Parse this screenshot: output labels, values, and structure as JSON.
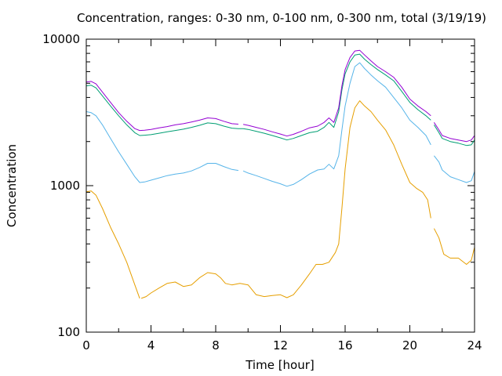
{
  "chart_data": {
    "type": "line",
    "title": "Concentration, ranges: 0-30 nm, 0-100 nm, 0-300 nm, total (3/19/19)",
    "xlabel": "Time [hour]",
    "ylabel": "Concentration",
    "xlim": [
      0,
      24
    ],
    "ylim": [
      100,
      10000
    ],
    "yscale": "log",
    "xticks": [
      0,
      4,
      8,
      12,
      16,
      20,
      24
    ],
    "xtick_labels": [
      "0",
      "4",
      "8",
      "12",
      "16",
      "20",
      "24"
    ],
    "yticks": [
      100,
      1000,
      10000
    ],
    "ytick_labels": [
      "100",
      "1000",
      "10000"
    ],
    "grid": false,
    "series": [
      {
        "color": "#e69f00",
        "segments": [
          [
            [
              0,
              910
            ],
            [
              0.3,
              920
            ],
            [
              0.6,
              860
            ],
            [
              1,
              700
            ],
            [
              1.5,
              520
            ],
            [
              2,
              400
            ],
            [
              2.5,
              300
            ],
            [
              3,
              210
            ],
            [
              3.3,
              170
            ]
          ],
          [
            [
              3.4,
              170
            ],
            [
              3.7,
              175
            ],
            [
              4,
              185
            ],
            [
              4.5,
              200
            ],
            [
              5,
              215
            ],
            [
              5.5,
              220
            ],
            [
              6,
              205
            ],
            [
              6.5,
              210
            ],
            [
              7,
              235
            ],
            [
              7.5,
              255
            ],
            [
              8,
              250
            ],
            [
              8.3,
              235
            ],
            [
              8.6,
              215
            ],
            [
              9,
              210
            ],
            [
              9.5,
              215
            ],
            [
              10,
              210
            ],
            [
              10.5,
              180
            ],
            [
              11,
              175
            ],
            [
              11.5,
              178
            ],
            [
              12,
              180
            ],
            [
              12.4,
              172
            ],
            [
              12.8,
              180
            ],
            [
              13.3,
              210
            ],
            [
              13.8,
              250
            ],
            [
              14.2,
              290
            ],
            [
              14.6,
              290
            ],
            [
              15,
              300
            ],
            [
              15.4,
              350
            ],
            [
              15.6,
              400
            ],
            [
              15.8,
              700
            ],
            [
              16,
              1300
            ],
            [
              16.3,
              2500
            ],
            [
              16.6,
              3400
            ],
            [
              16.9,
              3800
            ],
            [
              17.2,
              3500
            ],
            [
              17.6,
              3200
            ],
            [
              18,
              2800
            ],
            [
              18.5,
              2400
            ],
            [
              19,
              1900
            ],
            [
              19.5,
              1400
            ],
            [
              20,
              1050
            ],
            [
              20.4,
              960
            ],
            [
              20.8,
              900
            ],
            [
              21.1,
              800
            ],
            [
              21.3,
              600
            ]
          ],
          [
            [
              21.5,
              510
            ],
            [
              21.8,
              440
            ],
            [
              22.1,
              340
            ],
            [
              22.5,
              320
            ],
            [
              23,
              320
            ],
            [
              23.5,
              290
            ],
            [
              23.8,
              310
            ],
            [
              24,
              380
            ]
          ]
        ]
      },
      {
        "color": "#56b4e9",
        "segments": [
          [
            [
              0,
              3200
            ],
            [
              0.3,
              3150
            ],
            [
              0.6,
              3000
            ],
            [
              1,
              2600
            ],
            [
              1.5,
              2100
            ],
            [
              2,
              1700
            ],
            [
              2.5,
              1400
            ],
            [
              3,
              1150
            ],
            [
              3.3,
              1050
            ],
            [
              3.6,
              1060
            ],
            [
              4,
              1090
            ],
            [
              4.5,
              1130
            ],
            [
              5,
              1170
            ],
            [
              5.5,
              1200
            ],
            [
              6,
              1220
            ],
            [
              6.5,
              1260
            ],
            [
              7,
              1330
            ],
            [
              7.5,
              1420
            ],
            [
              8,
              1420
            ],
            [
              8.5,
              1350
            ],
            [
              9,
              1290
            ],
            [
              9.4,
              1270
            ]
          ],
          [
            [
              9.7,
              1260
            ],
            [
              10,
              1220
            ],
            [
              10.5,
              1170
            ],
            [
              11,
              1120
            ],
            [
              11.5,
              1070
            ],
            [
              12,
              1030
            ],
            [
              12.4,
              990
            ],
            [
              12.8,
              1020
            ],
            [
              13.3,
              1100
            ],
            [
              13.8,
              1200
            ],
            [
              14.3,
              1280
            ],
            [
              14.7,
              1300
            ],
            [
              15,
              1400
            ],
            [
              15.3,
              1300
            ],
            [
              15.6,
              1600
            ],
            [
              15.8,
              2400
            ],
            [
              16,
              3500
            ],
            [
              16.3,
              5000
            ],
            [
              16.6,
              6500
            ],
            [
              16.9,
              6900
            ],
            [
              17.2,
              6300
            ],
            [
              17.6,
              5700
            ],
            [
              18,
              5200
            ],
            [
              18.5,
              4700
            ],
            [
              19,
              4000
            ],
            [
              19.5,
              3400
            ],
            [
              20,
              2800
            ],
            [
              20.5,
              2500
            ],
            [
              21,
              2200
            ],
            [
              21.3,
              1900
            ]
          ],
          [
            [
              21.5,
              1600
            ],
            [
              21.8,
              1450
            ],
            [
              22,
              1280
            ],
            [
              22.5,
              1150
            ],
            [
              23,
              1100
            ],
            [
              23.5,
              1050
            ],
            [
              23.8,
              1080
            ],
            [
              24,
              1250
            ]
          ]
        ]
      },
      {
        "color": "#009e73",
        "segments": [
          [
            [
              0,
              4800
            ],
            [
              0.3,
              4850
            ],
            [
              0.6,
              4650
            ],
            [
              1,
              4100
            ],
            [
              1.5,
              3500
            ],
            [
              2,
              3000
            ],
            [
              2.5,
              2600
            ],
            [
              3,
              2300
            ],
            [
              3.3,
              2200
            ],
            [
              3.6,
              2210
            ],
            [
              4,
              2230
            ],
            [
              4.5,
              2280
            ],
            [
              5,
              2330
            ],
            [
              5.5,
              2380
            ],
            [
              6,
              2430
            ],
            [
              6.5,
              2500
            ],
            [
              7,
              2580
            ],
            [
              7.5,
              2680
            ],
            [
              8,
              2650
            ],
            [
              8.5,
              2550
            ],
            [
              9,
              2470
            ],
            [
              9.4,
              2450
            ],
            [
              9.7,
              2450
            ],
            [
              10,
              2420
            ],
            [
              10.5,
              2350
            ],
            [
              11,
              2280
            ],
            [
              11.5,
              2200
            ],
            [
              12,
              2120
            ],
            [
              12.4,
              2050
            ],
            [
              12.8,
              2100
            ],
            [
              13.3,
              2200
            ],
            [
              13.8,
              2300
            ],
            [
              14.3,
              2350
            ],
            [
              14.7,
              2500
            ],
            [
              15,
              2700
            ],
            [
              15.3,
              2500
            ],
            [
              15.6,
              3200
            ],
            [
              15.8,
              4500
            ],
            [
              16,
              5800
            ],
            [
              16.3,
              7000
            ],
            [
              16.6,
              7800
            ],
            [
              16.9,
              7900
            ],
            [
              17.2,
              7300
            ],
            [
              17.6,
              6700
            ],
            [
              18,
              6200
            ],
            [
              18.5,
              5700
            ],
            [
              19,
              5200
            ],
            [
              19.5,
              4400
            ],
            [
              20,
              3700
            ],
            [
              20.5,
              3300
            ],
            [
              21,
              3000
            ],
            [
              21.3,
              2800
            ]
          ],
          [
            [
              21.5,
              2600
            ],
            [
              21.8,
              2300
            ],
            [
              22,
              2100
            ],
            [
              22.5,
              2000
            ],
            [
              23,
              1950
            ],
            [
              23.5,
              1880
            ],
            [
              23.8,
              1900
            ],
            [
              24,
              2050
            ]
          ]
        ]
      },
      {
        "color": "#9400d3",
        "segments": [
          [
            [
              0,
              5100
            ],
            [
              0.3,
              5150
            ],
            [
              0.6,
              4950
            ],
            [
              1,
              4350
            ],
            [
              1.5,
              3700
            ],
            [
              2,
              3150
            ],
            [
              2.5,
              2750
            ],
            [
              3,
              2450
            ],
            [
              3.3,
              2380
            ],
            [
              3.6,
              2390
            ],
            [
              4,
              2420
            ],
            [
              4.5,
              2480
            ],
            [
              5,
              2530
            ],
            [
              5.5,
              2600
            ],
            [
              6,
              2650
            ],
            [
              6.5,
              2720
            ],
            [
              7,
              2800
            ],
            [
              7.5,
              2900
            ],
            [
              8,
              2870
            ],
            [
              8.5,
              2750
            ],
            [
              9,
              2650
            ],
            [
              9.4,
              2630
            ]
          ],
          [
            [
              9.7,
              2620
            ],
            [
              10,
              2580
            ],
            [
              10.5,
              2500
            ],
            [
              11,
              2420
            ],
            [
              11.5,
              2330
            ],
            [
              12,
              2250
            ],
            [
              12.4,
              2180
            ],
            [
              12.8,
              2240
            ],
            [
              13.3,
              2350
            ],
            [
              13.8,
              2480
            ],
            [
              14.3,
              2550
            ],
            [
              14.7,
              2700
            ],
            [
              15,
              2900
            ],
            [
              15.3,
              2700
            ],
            [
              15.6,
              3400
            ],
            [
              15.8,
              4800
            ],
            [
              16,
              6200
            ],
            [
              16.3,
              7500
            ],
            [
              16.6,
              8300
            ],
            [
              16.9,
              8400
            ],
            [
              17.2,
              7800
            ],
            [
              17.6,
              7100
            ],
            [
              18,
              6500
            ],
            [
              18.5,
              6000
            ],
            [
              19,
              5500
            ],
            [
              19.5,
              4700
            ],
            [
              20,
              3900
            ],
            [
              20.5,
              3500
            ],
            [
              21,
              3200
            ],
            [
              21.3,
              3000
            ]
          ],
          [
            [
              21.5,
              2700
            ],
            [
              21.8,
              2400
            ],
            [
              22,
              2200
            ],
            [
              22.5,
              2100
            ],
            [
              23,
              2050
            ],
            [
              23.5,
              2000
            ],
            [
              23.8,
              2050
            ],
            [
              24,
              2200
            ]
          ]
        ]
      }
    ]
  }
}
